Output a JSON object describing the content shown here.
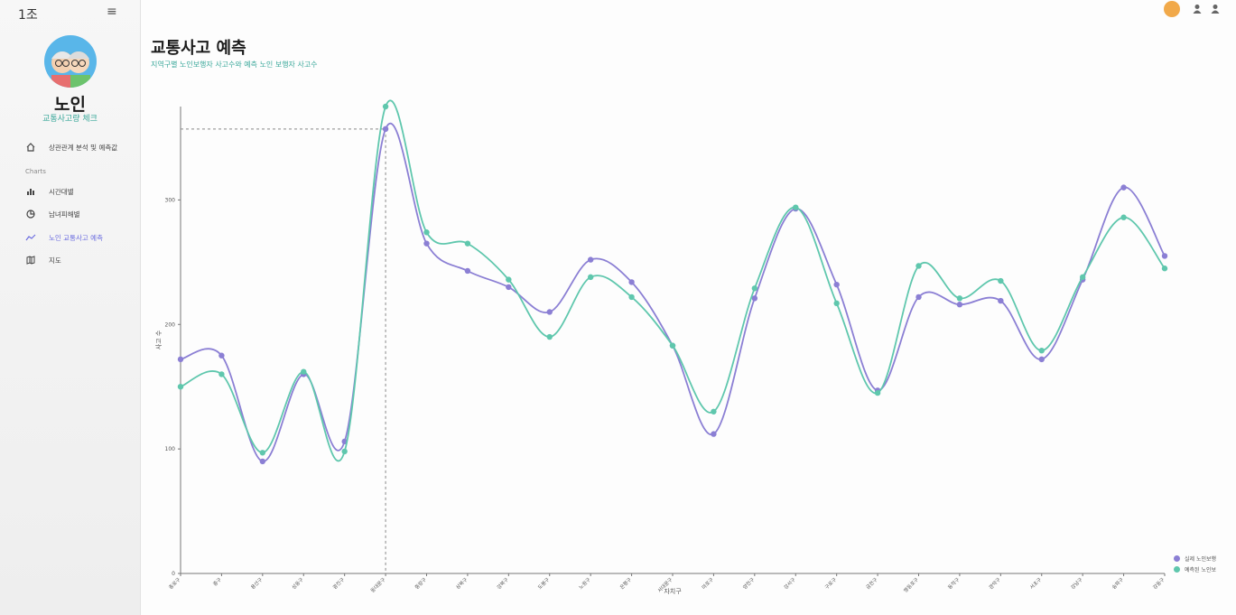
{
  "app": {
    "brand": "1조",
    "menu_icon": "hamburger-icon"
  },
  "profile": {
    "name": "노인",
    "subtitle": "교통사고량 체크"
  },
  "nav": {
    "items": [
      {
        "label": "상관관계 분석 및 예측값",
        "icon": "home-icon",
        "active": false
      },
      {
        "label": "시간대별",
        "icon": "bar-chart-icon",
        "active": false
      },
      {
        "label": "남녀피해별",
        "icon": "pie-chart-icon",
        "active": false
      },
      {
        "label": "노인 교통사고 예측",
        "icon": "line-chart-icon",
        "active": true
      },
      {
        "label": "지도",
        "icon": "map-icon",
        "active": false
      }
    ],
    "section_label": "Charts"
  },
  "header": {
    "title": "교통사고 예측",
    "subtitle": "지역구별 노인보행자 사고수와 예측 노인 보행자 사고수"
  },
  "colors": {
    "actual": "#8b7fd4",
    "predicted": "#5fc7ad",
    "accent": "#3aa89a"
  },
  "chart_data": {
    "type": "line",
    "xlabel": "자치구",
    "ylabel": "사고 수",
    "ylim": [
      0,
      375
    ],
    "yticks": [
      0,
      100,
      200,
      300
    ],
    "categories": [
      "종로구",
      "중구",
      "용산구",
      "성동구",
      "광진구",
      "동대문구",
      "중랑구",
      "성북구",
      "강북구",
      "도봉구",
      "노원구",
      "은평구",
      "서대문구",
      "마포구",
      "양천구",
      "강서구",
      "구로구",
      "금천구",
      "영등포구",
      "동작구",
      "관악구",
      "서초구",
      "강남구",
      "송파구",
      "강동구"
    ],
    "series": [
      {
        "name": "실제 노인보행",
        "values": [
          172,
          175,
          90,
          160,
          106,
          357,
          265,
          243,
          230,
          210,
          252,
          234,
          183,
          112,
          221,
          293,
          232,
          147,
          222,
          216,
          219,
          172,
          236,
          310,
          255
        ]
      },
      {
        "name": "예측된 노인보",
        "values": [
          150,
          160,
          97,
          162,
          98,
          375,
          274,
          265,
          236,
          190,
          238,
          222,
          183,
          130,
          229,
          294,
          217,
          145,
          247,
          221,
          235,
          179,
          238,
          286,
          245
        ]
      }
    ],
    "crosshair_index": 5,
    "crosshair_value": 357
  }
}
